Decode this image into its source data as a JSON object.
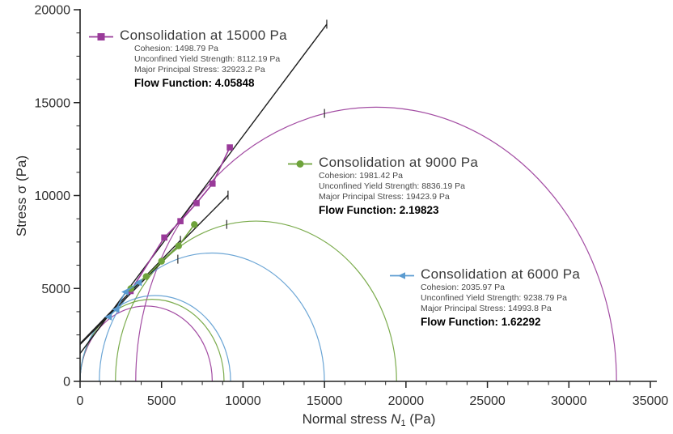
{
  "page": {
    "background": "#ffffff"
  },
  "axis_labels": {
    "x": "Normal stress N₁ (Pa)",
    "y": "Stress σ (Pa)"
  },
  "chart_data": {
    "type": "line",
    "subtype": "shear_cell_mohr_circles_with_yield_loci",
    "title": "",
    "xlabel": "Normal stress N₁ (Pa)",
    "ylabel": "Stress σ (Pa)",
    "xlim": [
      0,
      35000
    ],
    "ylim": [
      0,
      20000
    ],
    "x_major_tick_step": 5000,
    "x_minor_tick_step": 1250,
    "y_major_tick_step": 5000,
    "y_minor_tick_step": 1250,
    "x_tick_labels": [
      "0",
      "5000",
      "10000",
      "15000",
      "20000",
      "25000",
      "30000",
      "35000"
    ],
    "y_tick_labels": [
      "0",
      "5000",
      "10000",
      "15000",
      "20000"
    ],
    "grid": false,
    "locus_color": "#1c1c1c",
    "series": [
      {
        "name": "Consolidation at 15000 Pa",
        "color": "#993a99",
        "marker": "square",
        "cohesion_pa": 1498.79,
        "unconfined_yield_strength_pa": 8112.19,
        "major_principal_stress_pa": 32923.2,
        "flow_function": 4.05848,
        "yield_locus_line": {
          "x": [
            0,
            15140
          ],
          "y": [
            1500,
            19220
          ]
        },
        "data_points": [
          [
            9190,
            12590
          ],
          [
            8130,
            10640
          ],
          [
            7150,
            9590
          ],
          [
            6160,
            8620
          ],
          [
            5170,
            7740
          ],
          [
            3100,
            4860
          ]
        ],
        "uys_circle": [
          0,
          8112.19
        ],
        "principal_circle": [
          3415,
          32923.2
        ],
        "preshear_point": [
          15000,
          14420
        ]
      },
      {
        "name": "Consolidation at 9000 Pa",
        "color": "#6ea33b",
        "marker": "circle",
        "cohesion_pa": 1981.42,
        "unconfined_yield_strength_pa": 8836.19,
        "major_principal_stress_pa": 19423.9,
        "flow_function": 2.19823,
        "yield_locus_line": {
          "x": [
            0,
            9080
          ],
          "y": [
            1980,
            10020
          ]
        },
        "data_points": [
          [
            7015,
            8440
          ],
          [
            6045,
            7290
          ],
          [
            5000,
            6465
          ],
          [
            4060,
            5640
          ],
          [
            3115,
            4990
          ]
        ],
        "uys_circle": [
          0,
          8836.19
        ],
        "principal_circle": [
          2170,
          19423.9
        ],
        "preshear_point": [
          9000,
          8445
        ]
      },
      {
        "name": "Consolidation at 6000 Pa",
        "color": "#5b9bd0",
        "marker": "triangle-left",
        "cohesion_pa": 2035.97,
        "unconfined_yield_strength_pa": 9238.79,
        "major_principal_stress_pa": 14993.8,
        "flow_function": 1.62292,
        "yield_locus_line": {
          "x": [
            0,
            6160
          ],
          "y": [
            2040,
            7590
          ]
        },
        "data_points": [
          [
            3590,
            5320
          ],
          [
            2780,
            4815
          ],
          [
            2210,
            3875
          ],
          [
            1750,
            3470
          ]
        ],
        "uys_circle": [
          0,
          9238.79
        ],
        "principal_circle": [
          1180,
          14993.8
        ],
        "preshear_point": [
          6000,
          6576
        ]
      }
    ]
  },
  "legend_blocks": [
    {
      "title": "Consolidation at 15000 Pa",
      "cohesion": "Cohesion: 1498.79 Pa",
      "uys": "Unconfined Yield Strength: 8112.19 Pa",
      "mps": "Major Principal Stress: 32923.2 Pa",
      "flow": "Flow Function: 4.05848"
    },
    {
      "title": "Consolidation at 9000 Pa",
      "cohesion": "Cohesion: 1981.42 Pa",
      "uys": "Unconfined Yield Strength: 8836.19 Pa",
      "mps": "Major Principal Stress: 19423.9 Pa",
      "flow": "Flow Function: 2.19823"
    },
    {
      "title": "Consolidation at 6000 Pa",
      "cohesion": "Cohesion: 2035.97 Pa",
      "uys": "Unconfined Yield Strength: 9238.79 Pa",
      "mps": "Major Principal Stress: 14993.8 Pa",
      "flow": "Flow Function: 1.62292"
    }
  ]
}
